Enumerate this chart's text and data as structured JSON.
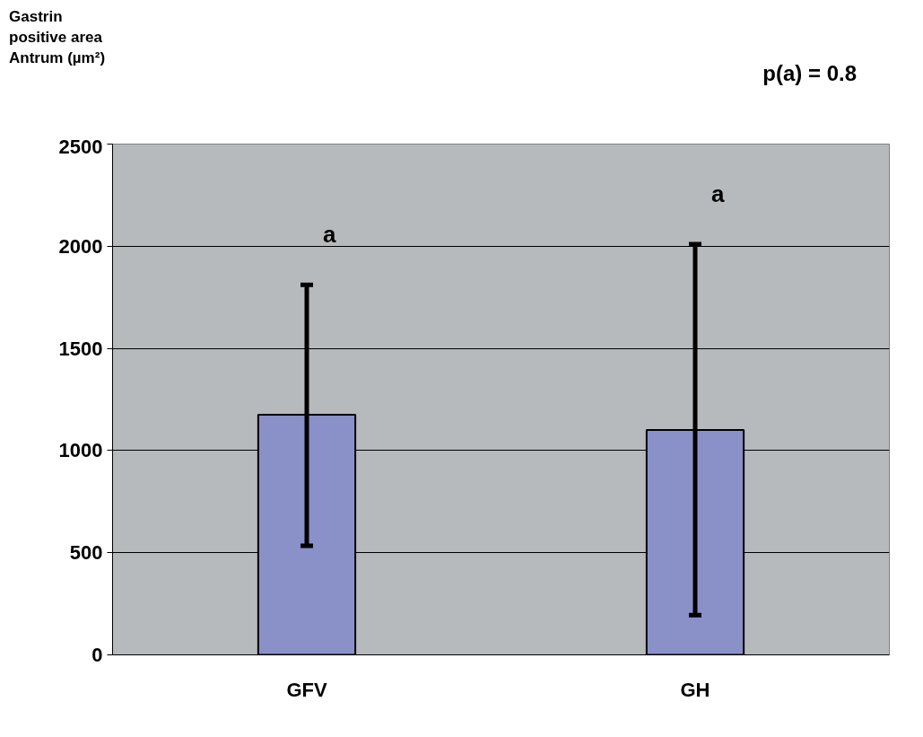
{
  "chart_data": {
    "type": "bar",
    "ylabel": "Gastrin positive area Antrum (µm²)",
    "categories": [
      "GFV",
      "GH"
    ],
    "values": [
      1175,
      1101
    ],
    "errors": [
      [
        534,
        1811
      ],
      [
        194,
        2010
      ]
    ],
    "color": "#8a91c8",
    "ylim": [
      0,
      2500
    ],
    "yticks": [
      0,
      500,
      1000,
      1500,
      2000,
      2500
    ],
    "grid": "y",
    "annotations": [
      "p(a) = 0.8",
      "a",
      "a"
    ]
  }
}
